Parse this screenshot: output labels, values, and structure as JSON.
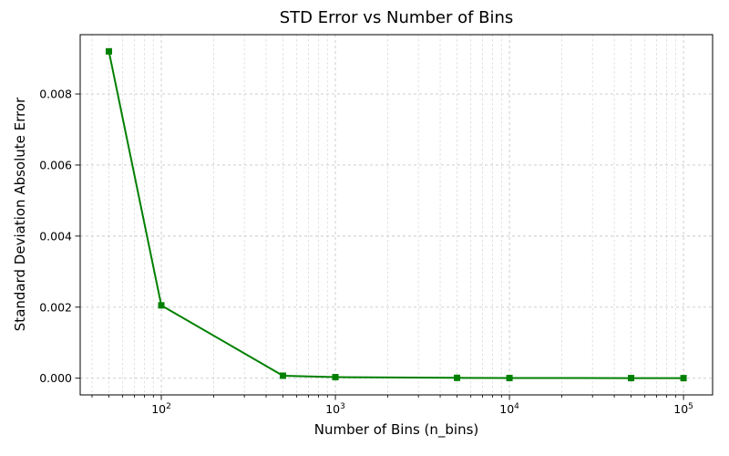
{
  "figure": {
    "background": "#ffffff"
  },
  "chart_data": {
    "type": "line",
    "title": "STD Error vs Number of Bins",
    "xlabel": "Number of Bins (n_bins)",
    "ylabel": "Standard Deviation Absolute Error",
    "x_scale": "log",
    "y_scale": "linear",
    "x": [
      50,
      100,
      500,
      1000,
      5000,
      10000,
      50000,
      100000
    ],
    "y": [
      0.0092,
      0.00205,
      7e-05,
      3e-05,
      1e-05,
      5e-06,
      3e-06,
      2e-06
    ],
    "xlim_log10": [
      1.534,
      5.167
    ],
    "ylim": [
      -0.00047,
      0.00967
    ],
    "x_ticks": [
      {
        "value": 100,
        "mantissa": "10",
        "exponent": "2"
      },
      {
        "value": 1000,
        "mantissa": "10",
        "exponent": "3"
      },
      {
        "value": 10000,
        "mantissa": "10",
        "exponent": "4"
      },
      {
        "value": 100000,
        "mantissa": "10",
        "exponent": "5"
      }
    ],
    "y_ticks": [
      {
        "value": 0.0,
        "label": "0.000"
      },
      {
        "value": 0.002,
        "label": "0.002"
      },
      {
        "value": 0.004,
        "label": "0.004"
      },
      {
        "value": 0.006,
        "label": "0.006"
      },
      {
        "value": 0.008,
        "label": "0.008"
      }
    ],
    "line_color": "#008000",
    "marker": "square",
    "marker_size": 7,
    "line_width": 2,
    "grid": {
      "major": true,
      "minor_x": true,
      "style": "dashed",
      "major_color": "#c9c9c9",
      "minor_color": "#dadada"
    },
    "spine_color": "#000000",
    "legend_position": "none"
  }
}
